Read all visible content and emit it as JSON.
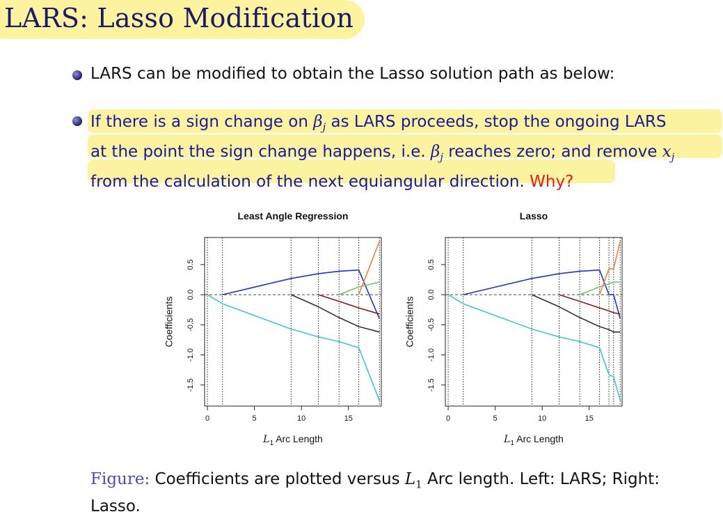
{
  "slide": {
    "title": "LARS: Lasso Modification",
    "bullet1": "LARS can be modified to obtain the Lasso solution path as below:",
    "bullet2": {
      "t1": "If there is a sign change on ",
      "beta": "β",
      "sub_j": "j",
      "t2": " as LARS proceeds, stop the ongoing LARS",
      "t3": "at the point the sign change happens, i.e. ",
      "t4": " reaches zero; and remove ",
      "x": "x",
      "t5": "from the calculation of the next equiangular direction. ",
      "why": "Why?"
    },
    "caption": {
      "label": "Figure:",
      "t1": " Coefficients are plotted versus ",
      "L": "L",
      "one": "1",
      "t2": " Arc length. Left: LARS; Right:",
      "t3": "Lasso."
    }
  },
  "colors": {
    "title": "#1a1a66",
    "highlight": "#fcf3a1",
    "bullet_text": "#1a1a99",
    "why": "#e02020",
    "fig_label": "#4b4bb8",
    "series": [
      "#2233cc",
      "#3fc6cf",
      "#333333",
      "#8b1a1a",
      "#77c060",
      "#e8843a"
    ]
  },
  "chart_data": [
    {
      "type": "line",
      "title": "Least Angle Regression",
      "xlabel": "L1 Arc Length",
      "ylabel": "Coefficients",
      "xlim": [
        -0.3,
        18.5
      ],
      "ylim": [
        -1.85,
        0.95
      ],
      "xticks": [
        0,
        5,
        10,
        15
      ],
      "xtick_labels": [
        "0",
        "5",
        "10",
        "15"
      ],
      "yticks": [
        -1.5,
        -1.0,
        -0.5,
        0.0,
        0.5
      ],
      "ytick_labels": [
        "-1.5",
        "-1.0",
        "-0.5",
        "0.0",
        "0.5"
      ],
      "vlines": [
        0,
        1.6,
        8.9,
        11.8,
        14.0,
        16.1,
        18.3
      ],
      "zero_line": true,
      "series": [
        {
          "x": [
            1.6,
            8.9,
            11.8,
            14.0,
            16.1,
            18.3
          ],
          "y": [
            0,
            0.27,
            0.35,
            0.39,
            0.41,
            -0.4
          ]
        },
        {
          "x": [
            0,
            1.6,
            8.9,
            11.8,
            14.0,
            16.1,
            18.3
          ],
          "y": [
            0,
            -0.15,
            -0.57,
            -0.7,
            -0.78,
            -0.88,
            -1.76
          ]
        },
        {
          "x": [
            8.9,
            11.8,
            14.0,
            16.1,
            18.3
          ],
          "y": [
            0,
            -0.2,
            -0.38,
            -0.53,
            -0.62
          ]
        },
        {
          "x": [
            11.8,
            14.0,
            16.1,
            18.3
          ],
          "y": [
            0,
            -0.11,
            -0.22,
            -0.32
          ]
        },
        {
          "x": [
            14.0,
            16.1,
            18.3
          ],
          "y": [
            0,
            0.13,
            0.21
          ]
        },
        {
          "x": [
            16.1,
            18.3
          ],
          "y": [
            0,
            0.89
          ]
        }
      ]
    },
    {
      "type": "line",
      "title": "Lasso",
      "xlabel": "L1 Arc Length",
      "ylabel": "Coefficients",
      "xlim": [
        -0.3,
        18.5
      ],
      "ylim": [
        -1.85,
        0.95
      ],
      "xticks": [
        0,
        5,
        10,
        15
      ],
      "xtick_labels": [
        "0",
        "5",
        "10",
        "15"
      ],
      "yticks": [
        -1.5,
        -1.0,
        -0.5,
        0.0,
        0.5
      ],
      "ytick_labels": [
        "-1.5",
        "-1.0",
        "-0.5",
        "0.0",
        "0.5"
      ],
      "vlines": [
        0,
        1.6,
        8.9,
        11.8,
        14.0,
        16.1,
        17.1,
        17.6,
        18.3
      ],
      "zero_line": true,
      "series": [
        {
          "x": [
            1.6,
            8.9,
            11.8,
            14.0,
            16.1,
            17.1,
            17.6,
            18.3
          ],
          "y": [
            0,
            0.27,
            0.35,
            0.39,
            0.41,
            0,
            0,
            -0.4
          ]
        },
        {
          "x": [
            0,
            1.6,
            8.9,
            11.8,
            14.0,
            16.1,
            17.1,
            17.6,
            18.3
          ],
          "y": [
            0,
            -0.15,
            -0.57,
            -0.7,
            -0.78,
            -0.88,
            -1.33,
            -1.36,
            -1.76
          ]
        },
        {
          "x": [
            8.9,
            11.8,
            14.0,
            16.1,
            17.1,
            17.6,
            18.3
          ],
          "y": [
            0,
            -0.2,
            -0.38,
            -0.53,
            -0.58,
            -0.62,
            -0.62
          ]
        },
        {
          "x": [
            11.8,
            14.0,
            16.1,
            17.1,
            17.6,
            18.3
          ],
          "y": [
            0,
            -0.11,
            -0.22,
            -0.27,
            -0.3,
            -0.32
          ]
        },
        {
          "x": [
            14.0,
            16.1,
            17.1,
            17.6,
            18.3
          ],
          "y": [
            0,
            0.13,
            0.18,
            0.21,
            0.21
          ]
        },
        {
          "x": [
            16.1,
            17.1,
            17.6,
            18.3
          ],
          "y": [
            0,
            0.43,
            0.43,
            0.89
          ]
        }
      ]
    }
  ]
}
